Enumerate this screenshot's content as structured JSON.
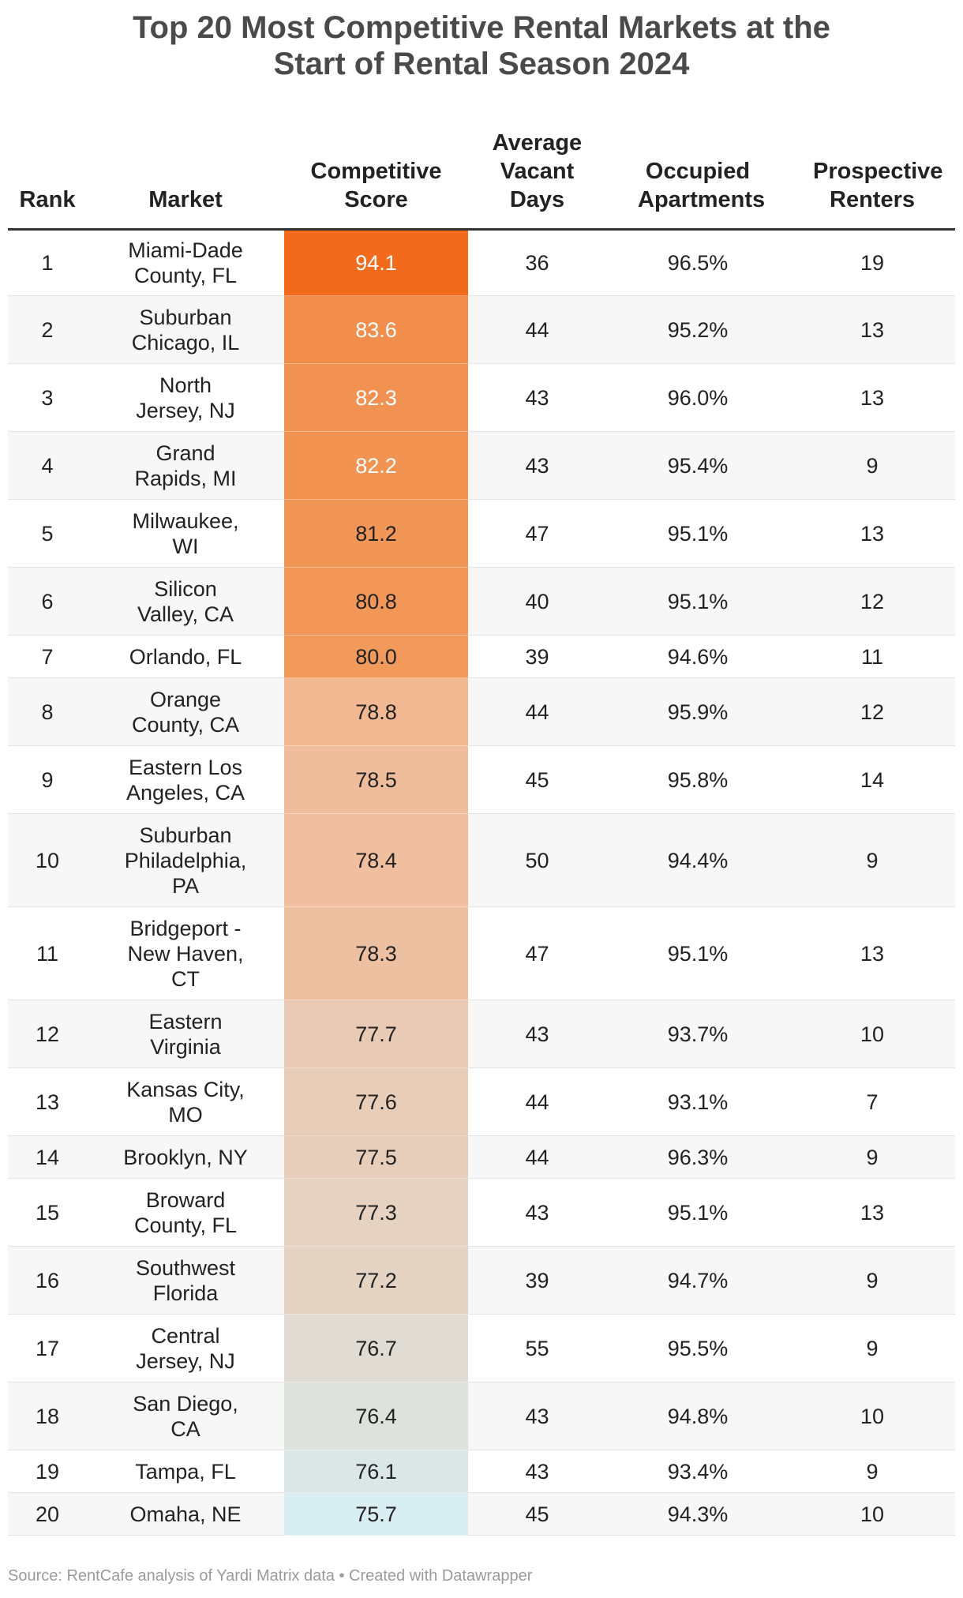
{
  "title_line1": "Top 20 Most Competitive Rental Markets at the",
  "title_line2": "Start of Rental Season 2024",
  "columns": [
    "Rank",
    "Market",
    "Competitive Score",
    "Average Vacant Days",
    "Occupied Apartments",
    "Prospective Renters"
  ],
  "chart_data": {
    "type": "table",
    "title": "Top 20 Most Competitive Rental Markets at the Start of Rental Season 2024",
    "columns": [
      "Rank",
      "Market",
      "Competitive Score",
      "Average Vacant Days",
      "Occupied Apartments",
      "Prospective Renters"
    ],
    "rows": [
      {
        "rank": "1",
        "market": "Miami-Dade County, FL",
        "score": "94.1",
        "vacant_days": "36",
        "occupied": "96.5%",
        "renters": "19"
      },
      {
        "rank": "2",
        "market": "Suburban Chicago, IL",
        "score": "83.6",
        "vacant_days": "44",
        "occupied": "95.2%",
        "renters": "13"
      },
      {
        "rank": "3",
        "market": "North Jersey, NJ",
        "score": "82.3",
        "vacant_days": "43",
        "occupied": "96.0%",
        "renters": "13"
      },
      {
        "rank": "4",
        "market": "Grand Rapids, MI",
        "score": "82.2",
        "vacant_days": "43",
        "occupied": "95.4%",
        "renters": "9"
      },
      {
        "rank": "5",
        "market": "Milwaukee, WI",
        "score": "81.2",
        "vacant_days": "47",
        "occupied": "95.1%",
        "renters": "13"
      },
      {
        "rank": "6",
        "market": "Silicon Valley, CA",
        "score": "80.8",
        "vacant_days": "40",
        "occupied": "95.1%",
        "renters": "12"
      },
      {
        "rank": "7",
        "market": "Orlando, FL",
        "score": "80.0",
        "vacant_days": "39",
        "occupied": "94.6%",
        "renters": "11"
      },
      {
        "rank": "8",
        "market": "Orange County, CA",
        "score": "78.8",
        "vacant_days": "44",
        "occupied": "95.9%",
        "renters": "12"
      },
      {
        "rank": "9",
        "market": "Eastern Los Angeles, CA",
        "score": "78.5",
        "vacant_days": "45",
        "occupied": "95.8%",
        "renters": "14"
      },
      {
        "rank": "10",
        "market": "Suburban Philadelphia, PA",
        "score": "78.4",
        "vacant_days": "50",
        "occupied": "94.4%",
        "renters": "9"
      },
      {
        "rank": "11",
        "market": "Bridgeport - New Haven, CT",
        "score": "78.3",
        "vacant_days": "47",
        "occupied": "95.1%",
        "renters": "13"
      },
      {
        "rank": "12",
        "market": "Eastern Virginia",
        "score": "77.7",
        "vacant_days": "43",
        "occupied": "93.7%",
        "renters": "10"
      },
      {
        "rank": "13",
        "market": "Kansas City, MO",
        "score": "77.6",
        "vacant_days": "44",
        "occupied": "93.1%",
        "renters": "7"
      },
      {
        "rank": "14",
        "market": "Brooklyn, NY",
        "score": "77.5",
        "vacant_days": "44",
        "occupied": "96.3%",
        "renters": "9"
      },
      {
        "rank": "15",
        "market": "Broward County, FL",
        "score": "77.3",
        "vacant_days": "43",
        "occupied": "95.1%",
        "renters": "13"
      },
      {
        "rank": "16",
        "market": "Southwest Florida",
        "score": "77.2",
        "vacant_days": "39",
        "occupied": "94.7%",
        "renters": "9"
      },
      {
        "rank": "17",
        "market": "Central Jersey, NJ",
        "score": "76.7",
        "vacant_days": "55",
        "occupied": "95.5%",
        "renters": "9"
      },
      {
        "rank": "18",
        "market": "San Diego, CA",
        "score": "76.4",
        "vacant_days": "43",
        "occupied": "94.8%",
        "renters": "10"
      },
      {
        "rank": "19",
        "market": "Tampa, FL",
        "score": "76.1",
        "vacant_days": "43",
        "occupied": "93.4%",
        "renters": "9"
      },
      {
        "rank": "20",
        "market": "Omaha, NE",
        "score": "75.7",
        "vacant_days": "45",
        "occupied": "94.3%",
        "renters": "10"
      }
    ]
  },
  "source": "Source: RentCafe analysis of Yardi Matrix data • Created with Datawrapper",
  "colors": {
    "score_high": "#f26b1d",
    "score_mid": "#f4b48c",
    "score_low": "#d8eef3",
    "title": "#4a4a4a",
    "source": "#9a9a9a"
  }
}
